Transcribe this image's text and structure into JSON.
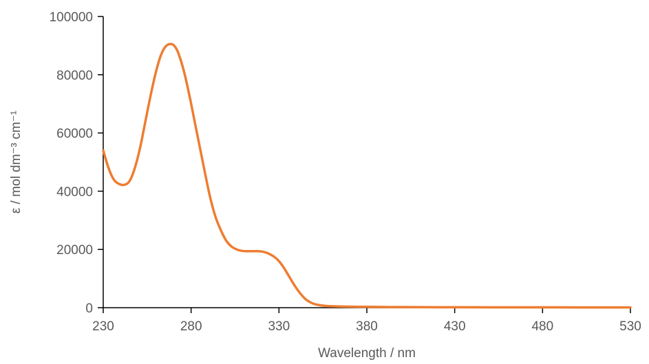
{
  "chart_data": {
    "type": "line",
    "title": "",
    "xlabel": "Wavelength / nm",
    "ylabel": "ε / mol dm⁻³ cm⁻¹",
    "xlim": [
      230,
      530
    ],
    "ylim": [
      0,
      100000
    ],
    "x_ticks": [
      "230",
      "280",
      "330",
      "380",
      "430",
      "480",
      "530"
    ],
    "y_ticks": [
      "0",
      "20000",
      "40000",
      "60000",
      "80000",
      "100000"
    ],
    "grid": false,
    "legend": "none",
    "series": [
      {
        "color": "#ED7D31",
        "x": [
          230,
          233,
          236,
          239,
          242,
          245,
          248,
          251,
          254,
          257,
          260,
          263,
          266,
          269,
          271,
          273,
          276,
          279,
          282,
          285,
          288,
          291,
          294,
          297,
          300,
          303,
          306,
          309,
          312,
          315,
          318,
          321,
          324,
          327,
          330,
          333,
          336,
          339,
          342,
          345,
          348,
          351,
          354,
          357,
          360,
          365,
          370,
          380,
          390,
          400,
          420,
          450,
          480,
          500,
          530
        ],
        "y": [
          54000,
          48000,
          44000,
          42500,
          42200,
          43500,
          48000,
          55000,
          64000,
          73000,
          81000,
          87000,
          90000,
          90500,
          89500,
          87000,
          81000,
          73000,
          64000,
          55000,
          46000,
          37500,
          31000,
          26500,
          23000,
          21000,
          20000,
          19500,
          19400,
          19400,
          19400,
          19200,
          18600,
          17600,
          16000,
          13500,
          10500,
          7500,
          5000,
          3000,
          1800,
          1100,
          800,
          600,
          500,
          400,
          350,
          280,
          230,
          200,
          160,
          130,
          110,
          100,
          90
        ]
      }
    ]
  }
}
